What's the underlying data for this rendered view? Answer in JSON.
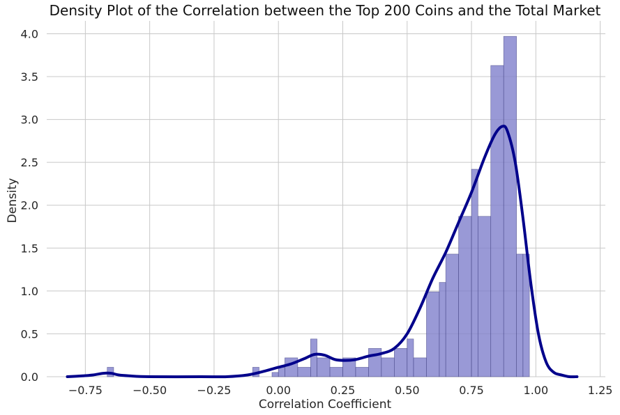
{
  "chart_data": {
    "type": "bar",
    "subtype": "histogram-with-kde",
    "title": "Density Plot of the Correlation between the Top 200 Coins and the Total Market",
    "xlabel": "Correlation Coefficient",
    "ylabel": "Density",
    "xlim": [
      -0.9,
      1.27
    ],
    "ylim": [
      0,
      4.15
    ],
    "xticks": [
      -0.75,
      -0.5,
      -0.25,
      0.0,
      0.25,
      0.5,
      0.75,
      1.0,
      1.25
    ],
    "xtick_labels": [
      "−0.75",
      "−0.50",
      "−0.25",
      "0.00",
      "0.25",
      "0.50",
      "0.75",
      "1.00",
      "1.25"
    ],
    "yticks": [
      0.0,
      0.5,
      1.0,
      1.5,
      2.0,
      2.5,
      3.0,
      3.5,
      4.0
    ],
    "ytick_labels": [
      "0.0",
      "0.5",
      "1.0",
      "1.5",
      "2.0",
      "2.5",
      "3.0",
      "3.5",
      "4.0"
    ],
    "grid": true,
    "legend": "none",
    "colors": {
      "bar_fill": "#7f7fcc",
      "bar_edge": "#3a3a7a",
      "kde_line": "#00008b",
      "grid": "#c8c8c8"
    },
    "histogram": {
      "bins": [
        {
          "start": -0.665,
          "end": -0.64,
          "density": 0.11
        },
        {
          "start": -0.1,
          "end": -0.075,
          "density": 0.11
        },
        {
          "start": -0.025,
          "end": 0.0,
          "density": 0.05
        },
        {
          "start": 0.0,
          "end": 0.025,
          "density": 0.11
        },
        {
          "start": 0.025,
          "end": 0.075,
          "density": 0.22
        },
        {
          "start": 0.075,
          "end": 0.125,
          "density": 0.11
        },
        {
          "start": 0.125,
          "end": 0.15,
          "density": 0.44
        },
        {
          "start": 0.15,
          "end": 0.2,
          "density": 0.22
        },
        {
          "start": 0.2,
          "end": 0.25,
          "density": 0.11
        },
        {
          "start": 0.25,
          "end": 0.3,
          "density": 0.22
        },
        {
          "start": 0.3,
          "end": 0.35,
          "density": 0.11
        },
        {
          "start": 0.35,
          "end": 0.4,
          "density": 0.33
        },
        {
          "start": 0.4,
          "end": 0.45,
          "density": 0.22
        },
        {
          "start": 0.45,
          "end": 0.5,
          "density": 0.33
        },
        {
          "start": 0.5,
          "end": 0.525,
          "density": 0.44
        },
        {
          "start": 0.525,
          "end": 0.575,
          "density": 0.22
        },
        {
          "start": 0.575,
          "end": 0.625,
          "density": 0.99
        },
        {
          "start": 0.625,
          "end": 0.65,
          "density": 1.1
        },
        {
          "start": 0.65,
          "end": 0.7,
          "density": 1.43
        },
        {
          "start": 0.7,
          "end": 0.75,
          "density": 1.87
        },
        {
          "start": 0.75,
          "end": 0.775,
          "density": 2.42
        },
        {
          "start": 0.775,
          "end": 0.825,
          "density": 1.87
        },
        {
          "start": 0.825,
          "end": 0.875,
          "density": 3.63
        },
        {
          "start": 0.875,
          "end": 0.925,
          "density": 3.97
        },
        {
          "start": 0.925,
          "end": 0.95,
          "density": 1.43
        },
        {
          "start": 0.95,
          "end": 0.975,
          "density": 1.43
        }
      ]
    },
    "kde": {
      "x": [
        -0.82,
        -0.76,
        -0.72,
        -0.68,
        -0.65,
        -0.62,
        -0.58,
        -0.5,
        -0.3,
        -0.2,
        -0.12,
        -0.06,
        0.0,
        0.05,
        0.1,
        0.14,
        0.18,
        0.22,
        0.26,
        0.3,
        0.35,
        0.4,
        0.45,
        0.5,
        0.55,
        0.6,
        0.65,
        0.7,
        0.75,
        0.8,
        0.84,
        0.87,
        0.89,
        0.92,
        0.95,
        0.98,
        1.01,
        1.04,
        1.07,
        1.1,
        1.13,
        1.16
      ],
      "y": [
        0.0,
        0.01,
        0.02,
        0.04,
        0.04,
        0.02,
        0.01,
        0.0,
        0.0,
        0.0,
        0.02,
        0.06,
        0.11,
        0.15,
        0.21,
        0.26,
        0.25,
        0.2,
        0.19,
        0.2,
        0.24,
        0.27,
        0.33,
        0.5,
        0.8,
        1.15,
        1.45,
        1.8,
        2.15,
        2.55,
        2.82,
        2.92,
        2.86,
        2.5,
        1.85,
        1.1,
        0.5,
        0.17,
        0.05,
        0.02,
        0.0,
        0.0
      ]
    }
  }
}
